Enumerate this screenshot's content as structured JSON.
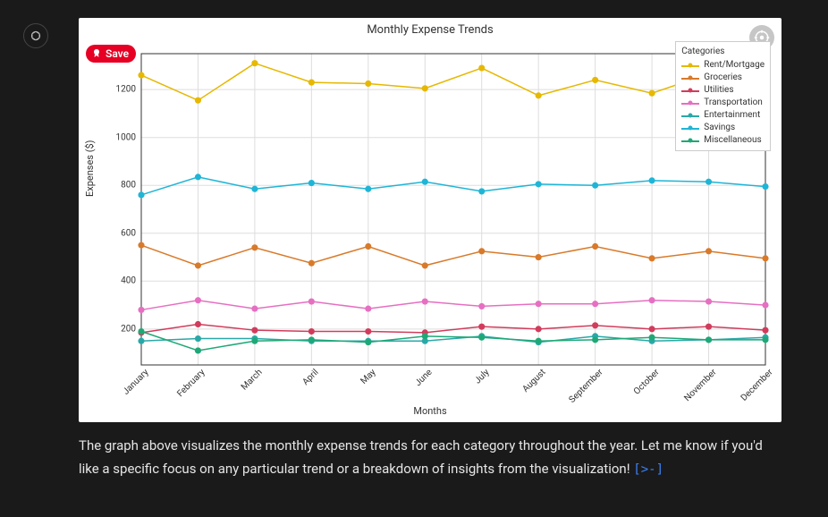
{
  "avatar": {
    "tooltip": "Assistant"
  },
  "save_button": {
    "label": "Save"
  },
  "chart": {
    "type": "line",
    "title": "Monthly Expense Trends",
    "xlabel": "Months",
    "ylabel": "Expenses ($)",
    "background_color": "#ffffff",
    "grid_color": "#dddddd",
    "axis_color": "#333333",
    "title_fontsize": 13,
    "label_fontsize": 11,
    "tick_fontsize": 10,
    "xlim": [
      0,
      11
    ],
    "ylim": [
      50,
      1350
    ],
    "yticks": [
      200,
      400,
      600,
      800,
      1000,
      1200
    ],
    "categories": [
      "January",
      "February",
      "March",
      "April",
      "May",
      "June",
      "July",
      "August",
      "September",
      "October",
      "November",
      "December"
    ],
    "legend": {
      "title": "Categories",
      "position": "upper right",
      "border_color": "#cccccc",
      "fontsize": 10
    },
    "marker": "circle",
    "marker_size": 5,
    "line_width": 1.5,
    "series": [
      {
        "name": "Rent/Mortgage",
        "color": "#e6b800",
        "values": [
          1260,
          1155,
          1310,
          1230,
          1225,
          1205,
          1290,
          1175,
          1240,
          1185,
          1265,
          1320
        ]
      },
      {
        "name": "Groceries",
        "color": "#d87a2a",
        "values": [
          550,
          465,
          540,
          475,
          545,
          465,
          525,
          500,
          545,
          495,
          525,
          495
        ]
      },
      {
        "name": "Utilities",
        "color": "#d13c5c",
        "values": [
          185,
          220,
          195,
          190,
          190,
          185,
          210,
          200,
          215,
          200,
          210,
          195
        ]
      },
      {
        "name": "Transportation",
        "color": "#e66fc2",
        "values": [
          280,
          320,
          285,
          315,
          285,
          315,
          295,
          305,
          305,
          320,
          315,
          300
        ]
      },
      {
        "name": "Entertainment",
        "color": "#2aa8a8",
        "values": [
          150,
          160,
          160,
          150,
          150,
          150,
          170,
          145,
          170,
          150,
          155,
          165
        ]
      },
      {
        "name": "Savings",
        "color": "#1fb5d6",
        "values": [
          760,
          835,
          785,
          810,
          785,
          815,
          775,
          805,
          800,
          820,
          815,
          795
        ]
      },
      {
        "name": "Miscellaneous",
        "color": "#1fa877",
        "values": [
          190,
          110,
          150,
          155,
          145,
          170,
          165,
          150,
          155,
          165,
          155,
          155
        ]
      }
    ]
  },
  "caption": {
    "text": "The graph above visualizes the monthly expense trends for each category throughout the year. Let me know if you'd like a specific focus on any particular trend or a breakdown of insights from the visualization! ",
    "code_link_label": "[>-]"
  }
}
